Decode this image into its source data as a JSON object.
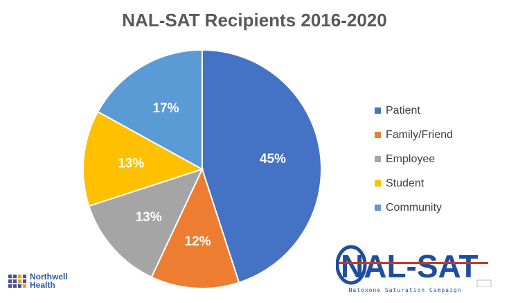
{
  "chart_data": {
    "type": "pie",
    "title": "NAL-SAT Recipients 2016-2020",
    "legend_position": "right",
    "slices": [
      {
        "label": "Patient",
        "value": 45,
        "display": "45%",
        "color": "#4472C4"
      },
      {
        "label": "Family/Friend",
        "value": 12,
        "display": "12%",
        "color": "#ED7D31"
      },
      {
        "label": "Employee",
        "value": 13,
        "display": "13%",
        "color": "#A5A5A5"
      },
      {
        "label": "Student",
        "value": 13,
        "display": "13%",
        "color": "#FFC000"
      },
      {
        "label": "Community",
        "value": 17,
        "display": "17%",
        "color": "#5B9BD5"
      }
    ]
  },
  "logos": {
    "northwell_line1": "Northwell",
    "northwell_line2": "Health",
    "nalsat_wordmark": "NAL-SAT",
    "nalsat_tagline": "Naloxone Saturation Campaign"
  },
  "colors": {
    "title": "#595959",
    "legend_text": "#404040",
    "nalsat_blue": "#1f4e9c",
    "nalsat_red": "#c0392b"
  }
}
